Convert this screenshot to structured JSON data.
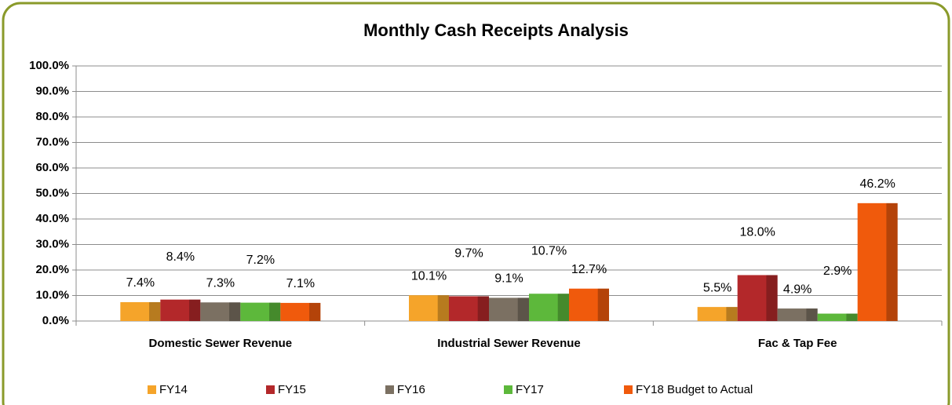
{
  "chart_data": {
    "type": "bar",
    "title": "Monthly Cash Receipts Analysis",
    "categories": [
      "Domestic Sewer Revenue",
      "Industrial Sewer Revenue",
      "Fac & Tap Fee"
    ],
    "series": [
      {
        "name": "FY14",
        "color": "#f5a42a",
        "values": [
          7.4,
          10.1,
          5.5
        ],
        "value_labels": [
          "7.4%",
          "10.1%",
          "5.5%"
        ]
      },
      {
        "name": "FY15",
        "color": "#b3282a",
        "values": [
          8.4,
          9.7,
          18.0
        ],
        "value_labels": [
          "8.4%",
          "9.7%",
          "18.0%"
        ]
      },
      {
        "name": "FY16",
        "color": "#7b7062",
        "values": [
          7.3,
          9.1,
          4.9
        ],
        "value_labels": [
          "7.3%",
          "9.1%",
          "4.9%"
        ]
      },
      {
        "name": "FY17",
        "color": "#5db83b",
        "values": [
          7.2,
          10.7,
          2.9
        ],
        "value_labels": [
          "7.2%",
          "10.7%",
          "2.9%"
        ]
      },
      {
        "name": "FY18 Budget to Actual",
        "color": "#f05a0c",
        "values": [
          7.1,
          12.7,
          46.2
        ],
        "value_labels": [
          "7.1%",
          "12.7%",
          "46.2%"
        ]
      }
    ],
    "ylim": [
      0,
      100
    ],
    "yticks": [
      {
        "value": 0,
        "label": "0.0%"
      },
      {
        "value": 10,
        "label": "10.0%"
      },
      {
        "value": 20,
        "label": "20.0%"
      },
      {
        "value": 30,
        "label": "30.0%"
      },
      {
        "value": 40,
        "label": "40.0%"
      },
      {
        "value": 50,
        "label": "50.0%"
      },
      {
        "value": 60,
        "label": "60.0%"
      },
      {
        "value": 70,
        "label": "70.0%"
      },
      {
        "value": 80,
        "label": "80.0%"
      },
      {
        "value": 90,
        "label": "90.0%"
      },
      {
        "value": 100,
        "label": "100.0%"
      }
    ],
    "grid": true,
    "legend": "bottom"
  }
}
